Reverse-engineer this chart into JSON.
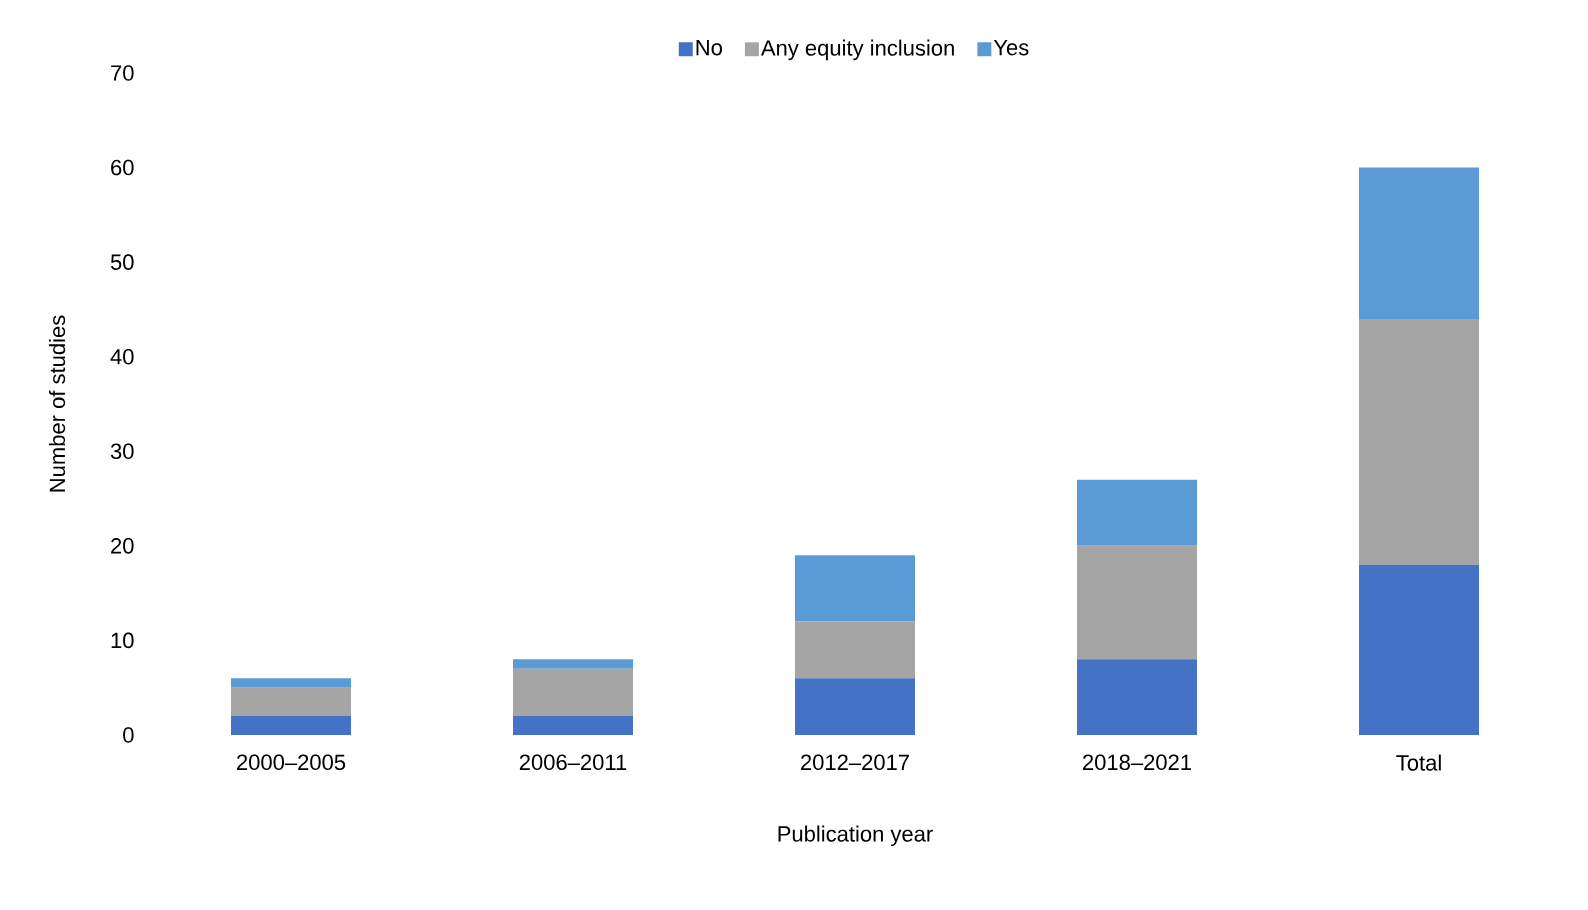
{
  "chart_data": {
    "type": "bar",
    "stacked": true,
    "xlabel": "Publication year",
    "ylabel": "Number of studies",
    "categories": [
      "2000–2005",
      "2006–2011",
      "2012–2017",
      "2018–2021",
      "Total"
    ],
    "series": [
      {
        "name": "No",
        "color": "#4472c4",
        "values": [
          2,
          2,
          6,
          8,
          18
        ]
      },
      {
        "name": "Any equity inclusion",
        "color": "#a5a5a5",
        "values": [
          3,
          5,
          6,
          12,
          26
        ]
      },
      {
        "name": "Yes",
        "color": "#5b9bd5",
        "values": [
          1,
          1,
          7,
          7,
          16
        ]
      }
    ],
    "ylim": [
      0,
      70
    ],
    "yticks": [
      0,
      10,
      20,
      30,
      40,
      50,
      60,
      70
    ],
    "legend": "top"
  }
}
